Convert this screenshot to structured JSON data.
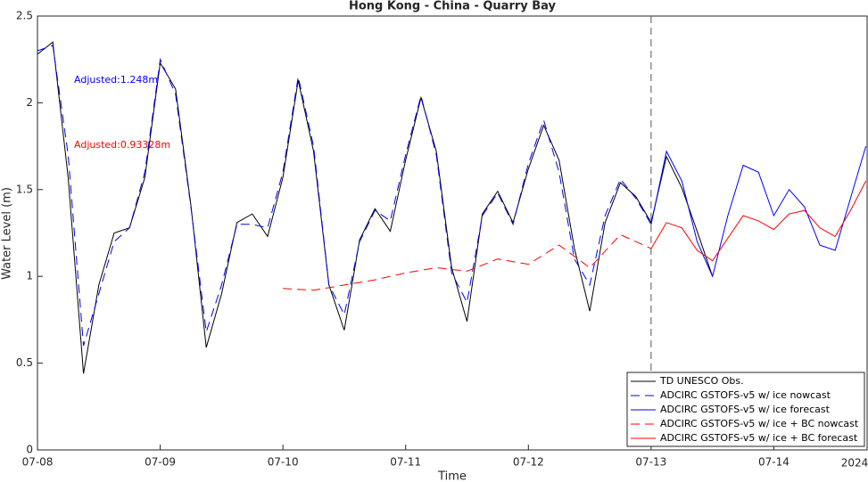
{
  "chart_data": {
    "type": "line",
    "title": "Hong Kong - China - Quarry Bay",
    "xlabel": "Time",
    "ylabel": "Water Level (m)",
    "xlim": [
      0,
      6.76
    ],
    "ylim": [
      0,
      2.5
    ],
    "xticks": [
      {
        "value": 0,
        "label": "07-08"
      },
      {
        "value": 1,
        "label": "07-09"
      },
      {
        "value": 2,
        "label": "07-10"
      },
      {
        "value": 3,
        "label": "07-11"
      },
      {
        "value": 4,
        "label": "07-12"
      },
      {
        "value": 5,
        "label": "07-13"
      },
      {
        "value": 6,
        "label": "07-14"
      }
    ],
    "yticks": [
      0,
      0.5,
      1,
      1.5,
      2,
      2.5
    ],
    "year_label": "2024",
    "vline": 5,
    "legend": "lower right",
    "annotations": [
      {
        "text": "Adjusted:1.248m",
        "color": "#0000ff"
      },
      {
        "text": "Adjusted:0.93328m",
        "color": "#ff0000"
      }
    ],
    "series": [
      {
        "name": "TD UNESCO Obs.",
        "color": "#000000",
        "dash": false,
        "x": [
          0,
          0.125,
          0.25,
          0.375,
          0.5,
          0.625,
          0.75,
          0.875,
          1,
          1.125,
          1.25,
          1.375,
          1.5,
          1.625,
          1.75,
          1.875,
          2,
          2.125,
          2.25,
          2.375,
          2.5,
          2.625,
          2.75,
          2.875,
          3,
          3.125,
          3.25,
          3.375,
          3.5,
          3.625,
          3.75,
          3.875,
          4,
          4.125,
          4.25,
          4.375,
          4.5,
          4.625,
          4.75,
          4.875,
          5,
          5.125,
          5.25,
          5.375,
          5.5
        ],
        "values": [
          2.28,
          2.35,
          1.57,
          0.44,
          0.95,
          1.25,
          1.28,
          1.57,
          2.23,
          2.08,
          1.41,
          0.59,
          0.9,
          1.31,
          1.36,
          1.23,
          1.57,
          2.13,
          1.72,
          0.95,
          0.69,
          1.21,
          1.39,
          1.26,
          1.67,
          2.03,
          1.72,
          1.05,
          0.74,
          1.36,
          1.49,
          1.31,
          1.62,
          1.87,
          1.67,
          1.16,
          0.8,
          1.31,
          1.54,
          1.46,
          1.31,
          1.69,
          1.51,
          1.26,
          1.0
        ]
      },
      {
        "name": "ADCIRC GSTOFS-v5 w/ ice nowcast",
        "color": "#0000ff",
        "dash": true,
        "x": [
          0,
          0.125,
          0.25,
          0.375,
          0.5,
          0.625,
          0.75,
          0.875,
          1,
          1.125,
          1.25,
          1.375,
          1.5,
          1.625,
          1.75,
          1.875,
          2,
          2.125,
          2.25,
          2.375,
          2.5,
          2.625,
          2.75,
          2.875,
          3,
          3.125,
          3.25,
          3.375,
          3.5,
          3.625,
          3.75,
          3.875,
          4,
          4.125,
          4.25,
          4.375,
          4.5,
          4.625,
          4.75,
          4.875,
          5
        ],
        "values": [
          2.3,
          2.33,
          1.7,
          0.6,
          0.9,
          1.2,
          1.28,
          1.6,
          2.25,
          2.05,
          1.4,
          0.68,
          0.95,
          1.3,
          1.3,
          1.28,
          1.6,
          2.15,
          1.75,
          0.95,
          0.78,
          1.2,
          1.38,
          1.32,
          1.7,
          2.04,
          1.7,
          1.02,
          0.85,
          1.35,
          1.48,
          1.3,
          1.65,
          1.9,
          1.6,
          1.1,
          0.95,
          1.35,
          1.56,
          1.45,
          1.3
        ]
      },
      {
        "name": "ADCIRC GSTOFS-v5 w/ ice forecast",
        "color": "#0000ff",
        "dash": false,
        "x": [
          5,
          5.125,
          5.25,
          5.375,
          5.5,
          5.625,
          5.75,
          5.875,
          6,
          6.125,
          6.25,
          6.375,
          6.5,
          6.625,
          6.75
        ],
        "values": [
          1.3,
          1.72,
          1.55,
          1.2,
          1.0,
          1.35,
          1.64,
          1.6,
          1.35,
          1.5,
          1.4,
          1.18,
          1.15,
          1.45,
          1.75
        ]
      },
      {
        "name": "ADCIRC GSTOFS-v5 w/ ice + BC nowcast",
        "color": "#ff0000",
        "dash": true,
        "x": [
          2,
          2.25,
          2.5,
          2.75,
          3,
          3.25,
          3.5,
          3.75,
          4,
          4.25,
          4.5,
          4.75,
          5
        ],
        "values": [
          0.93,
          0.92,
          0.95,
          0.98,
          1.02,
          1.05,
          1.03,
          1.1,
          1.07,
          1.18,
          1.05,
          1.24,
          1.16
        ]
      },
      {
        "name": "ADCIRC GSTOFS-v5 w/ ice + BC forecast",
        "color": "#ff0000",
        "dash": false,
        "x": [
          5,
          5.125,
          5.25,
          5.375,
          5.5,
          5.625,
          5.75,
          5.875,
          6,
          6.125,
          6.25,
          6.375,
          6.5,
          6.625,
          6.75
        ],
        "values": [
          1.16,
          1.31,
          1.28,
          1.15,
          1.09,
          1.22,
          1.35,
          1.32,
          1.27,
          1.36,
          1.38,
          1.28,
          1.23,
          1.38,
          1.55
        ]
      }
    ]
  }
}
